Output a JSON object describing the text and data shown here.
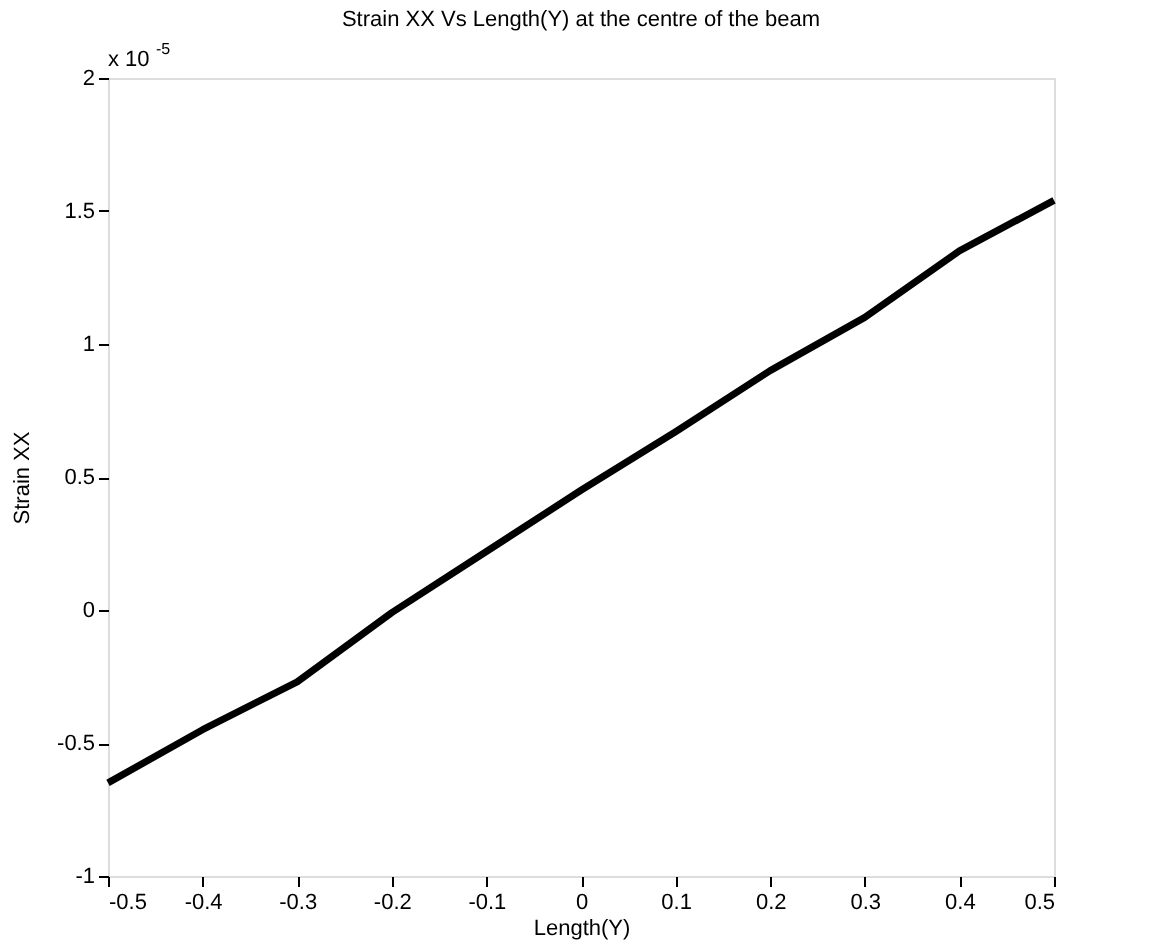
{
  "chart_data": {
    "type": "line",
    "title": "Strain XX Vs Length(Y) at the centre of the beam",
    "xlabel": "Length(Y)",
    "ylabel": "Strain XX",
    "annotations": [
      "x 10$^{-5}$"
    ],
    "x": [
      -0.5,
      -0.4,
      -0.3,
      -0.2,
      -0.1,
      0,
      0.1,
      0.2,
      0.3,
      0.4,
      0.5
    ],
    "series": [
      {
        "color": "#000000",
        "values": [
          -0.65,
          -0.45,
          -0.27,
          -0.01,
          0.22,
          0.45,
          0.67,
          0.9,
          1.1,
          1.35,
          1.54
        ]
      }
    ],
    "xlim": [
      -0.5,
      0.5
    ],
    "xticks": [
      -0.5,
      -0.4,
      -0.3,
      -0.2,
      -0.1,
      0,
      0.1,
      0.2,
      0.3,
      0.4,
      0.5
    ],
    "ylim": [
      -1,
      2
    ],
    "yticks": [
      -1,
      -0.5,
      0,
      0.5,
      1,
      1.5,
      2
    ],
    "grid": false,
    "legend": false,
    "marker": "none",
    "line_style": "solid"
  }
}
